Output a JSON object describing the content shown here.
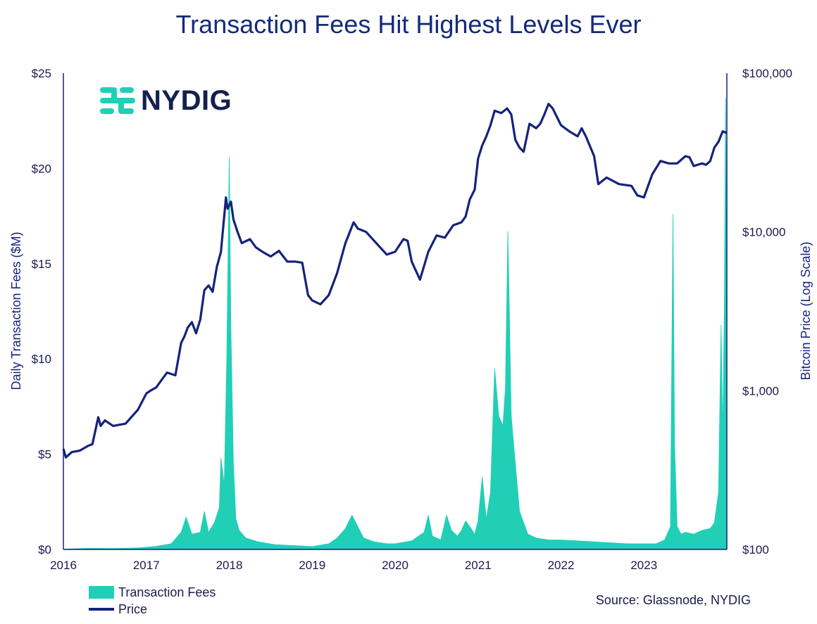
{
  "chart_data": {
    "type": "area",
    "title": "Transaction Fees Hit Highest Levels Ever",
    "ylabel_left": "Daily Transaction Fees ($M)",
    "ylabel_right": "Bitcoin Price (Log Scale)",
    "left_ylim": [
      0,
      25
    ],
    "right_ylim": [
      100,
      100000
    ],
    "xlim": [
      2016.0,
      2024.0
    ],
    "left_ticks": [
      "$0",
      "$5",
      "$10",
      "$15",
      "$20",
      "$25"
    ],
    "left_tick_values": [
      0,
      5,
      10,
      15,
      20,
      25
    ],
    "right_ticks": [
      "$100",
      "$1,000",
      "$10,000",
      "$100,000"
    ],
    "right_tick_values": [
      100,
      1000,
      10000,
      100000
    ],
    "x_ticks": [
      "2016",
      "2017",
      "2018",
      "2019",
      "2020",
      "2021",
      "2022",
      "2023"
    ],
    "x_tick_values": [
      2016,
      2017,
      2018,
      2019,
      2020,
      2021,
      2022,
      2023
    ],
    "series": [
      {
        "name": "Transaction Fees",
        "kind": "area",
        "axis": "left",
        "color": "#21cfb6",
        "x": [
          2016.0,
          2016.3,
          2016.6,
          2016.9,
          2017.1,
          2017.3,
          2017.42,
          2017.48,
          2017.55,
          2017.65,
          2017.7,
          2017.75,
          2017.82,
          2017.88,
          2017.9,
          2017.94,
          2017.97,
          2018.0,
          2018.02,
          2018.05,
          2018.08,
          2018.12,
          2018.2,
          2018.35,
          2018.55,
          2018.8,
          2019.0,
          2019.2,
          2019.3,
          2019.4,
          2019.48,
          2019.55,
          2019.62,
          2019.75,
          2019.9,
          2020.0,
          2020.2,
          2020.35,
          2020.4,
          2020.45,
          2020.55,
          2020.62,
          2020.68,
          2020.75,
          2020.8,
          2020.85,
          2020.9,
          2020.96,
          2021.0,
          2021.05,
          2021.1,
          2021.15,
          2021.2,
          2021.25,
          2021.3,
          2021.33,
          2021.36,
          2021.4,
          2021.45,
          2021.5,
          2021.6,
          2021.7,
          2021.85,
          2022.0,
          2022.2,
          2022.4,
          2022.6,
          2022.8,
          2023.0,
          2023.15,
          2023.25,
          2023.32,
          2023.35,
          2023.37,
          2023.4,
          2023.45,
          2023.5,
          2023.6,
          2023.7,
          2023.8,
          2023.85,
          2023.9,
          2023.93,
          2023.95,
          2023.97,
          2023.985,
          2024.0
        ],
        "values": [
          0.02,
          0.06,
          0.05,
          0.08,
          0.15,
          0.3,
          0.9,
          1.7,
          0.8,
          0.9,
          2.0,
          0.9,
          1.4,
          2.2,
          4.8,
          3.4,
          10.1,
          20.6,
          11.5,
          4.5,
          1.6,
          1.0,
          0.6,
          0.4,
          0.25,
          0.2,
          0.15,
          0.3,
          0.6,
          1.1,
          1.8,
          1.2,
          0.6,
          0.4,
          0.3,
          0.3,
          0.45,
          0.9,
          1.8,
          0.7,
          0.5,
          1.8,
          1.0,
          0.7,
          1.0,
          1.5,
          1.2,
          0.8,
          1.5,
          3.8,
          1.6,
          3.0,
          9.5,
          7.0,
          6.5,
          8.5,
          16.7,
          7.0,
          4.5,
          2.0,
          0.8,
          0.6,
          0.5,
          0.5,
          0.45,
          0.4,
          0.35,
          0.3,
          0.3,
          0.3,
          0.5,
          1.2,
          17.6,
          5.5,
          1.2,
          0.8,
          0.9,
          0.8,
          1.0,
          1.1,
          1.4,
          3.0,
          11.8,
          6.0,
          13.0,
          23.7,
          14.0
        ]
      },
      {
        "name": "Price",
        "kind": "line",
        "axis": "right",
        "color": "#14237a",
        "x": [
          2016.0,
          2016.03,
          2016.1,
          2016.2,
          2016.3,
          2016.35,
          2016.42,
          2016.45,
          2016.5,
          2016.6,
          2016.75,
          2016.9,
          2017.0,
          2017.05,
          2017.12,
          2017.2,
          2017.25,
          2017.35,
          2017.42,
          2017.46,
          2017.5,
          2017.55,
          2017.6,
          2017.65,
          2017.7,
          2017.75,
          2017.8,
          2017.85,
          2017.9,
          2017.96,
          2017.98,
          2018.02,
          2018.05,
          2018.1,
          2018.15,
          2018.25,
          2018.32,
          2018.4,
          2018.5,
          2018.6,
          2018.7,
          2018.8,
          2018.88,
          2018.95,
          2019.0,
          2019.1,
          2019.2,
          2019.3,
          2019.4,
          2019.5,
          2019.55,
          2019.65,
          2019.8,
          2019.9,
          2020.0,
          2020.1,
          2020.15,
          2020.2,
          2020.3,
          2020.4,
          2020.5,
          2020.6,
          2020.7,
          2020.8,
          2020.85,
          2020.9,
          2020.96,
          2021.0,
          2021.05,
          2021.1,
          2021.15,
          2021.2,
          2021.28,
          2021.35,
          2021.4,
          2021.45,
          2021.5,
          2021.55,
          2021.62,
          2021.7,
          2021.75,
          2021.8,
          2021.85,
          2021.9,
          2022.0,
          2022.1,
          2022.2,
          2022.25,
          2022.3,
          2022.4,
          2022.45,
          2022.55,
          2022.7,
          2022.85,
          2022.92,
          2023.0,
          2023.1,
          2023.2,
          2023.3,
          2023.4,
          2023.5,
          2023.55,
          2023.6,
          2023.7,
          2023.75,
          2023.8,
          2023.85,
          2023.9,
          2023.95,
          2024.0
        ],
        "values": [
          430,
          380,
          410,
          420,
          450,
          460,
          680,
          600,
          650,
          600,
          620,
          760,
          960,
          1000,
          1050,
          1200,
          1300,
          1250,
          2000,
          2200,
          2500,
          2700,
          2300,
          2800,
          4300,
          4600,
          4200,
          6000,
          7500,
          16500,
          14000,
          15500,
          12000,
          10000,
          8500,
          9000,
          8000,
          7500,
          7000,
          7600,
          6500,
          6500,
          6400,
          4000,
          3700,
          3500,
          4000,
          5500,
          8500,
          11500,
          10500,
          10000,
          8200,
          7200,
          7500,
          9000,
          8800,
          6500,
          5000,
          7500,
          9500,
          9200,
          11000,
          11500,
          12500,
          16000,
          18500,
          29000,
          35000,
          40000,
          47000,
          58000,
          56000,
          60000,
          55000,
          38000,
          34000,
          32000,
          48000,
          45000,
          48000,
          55000,
          64000,
          60000,
          47000,
          43000,
          40000,
          45000,
          40000,
          30000,
          20000,
          22000,
          20000,
          19500,
          17000,
          16500,
          23000,
          28000,
          27000,
          27000,
          30000,
          29500,
          26000,
          27000,
          26500,
          28000,
          34000,
          37000,
          43000,
          42000
        ]
      }
    ]
  },
  "logo": {
    "text": "NYDIG"
  },
  "source": "Source: Glassnode, NYDIG"
}
